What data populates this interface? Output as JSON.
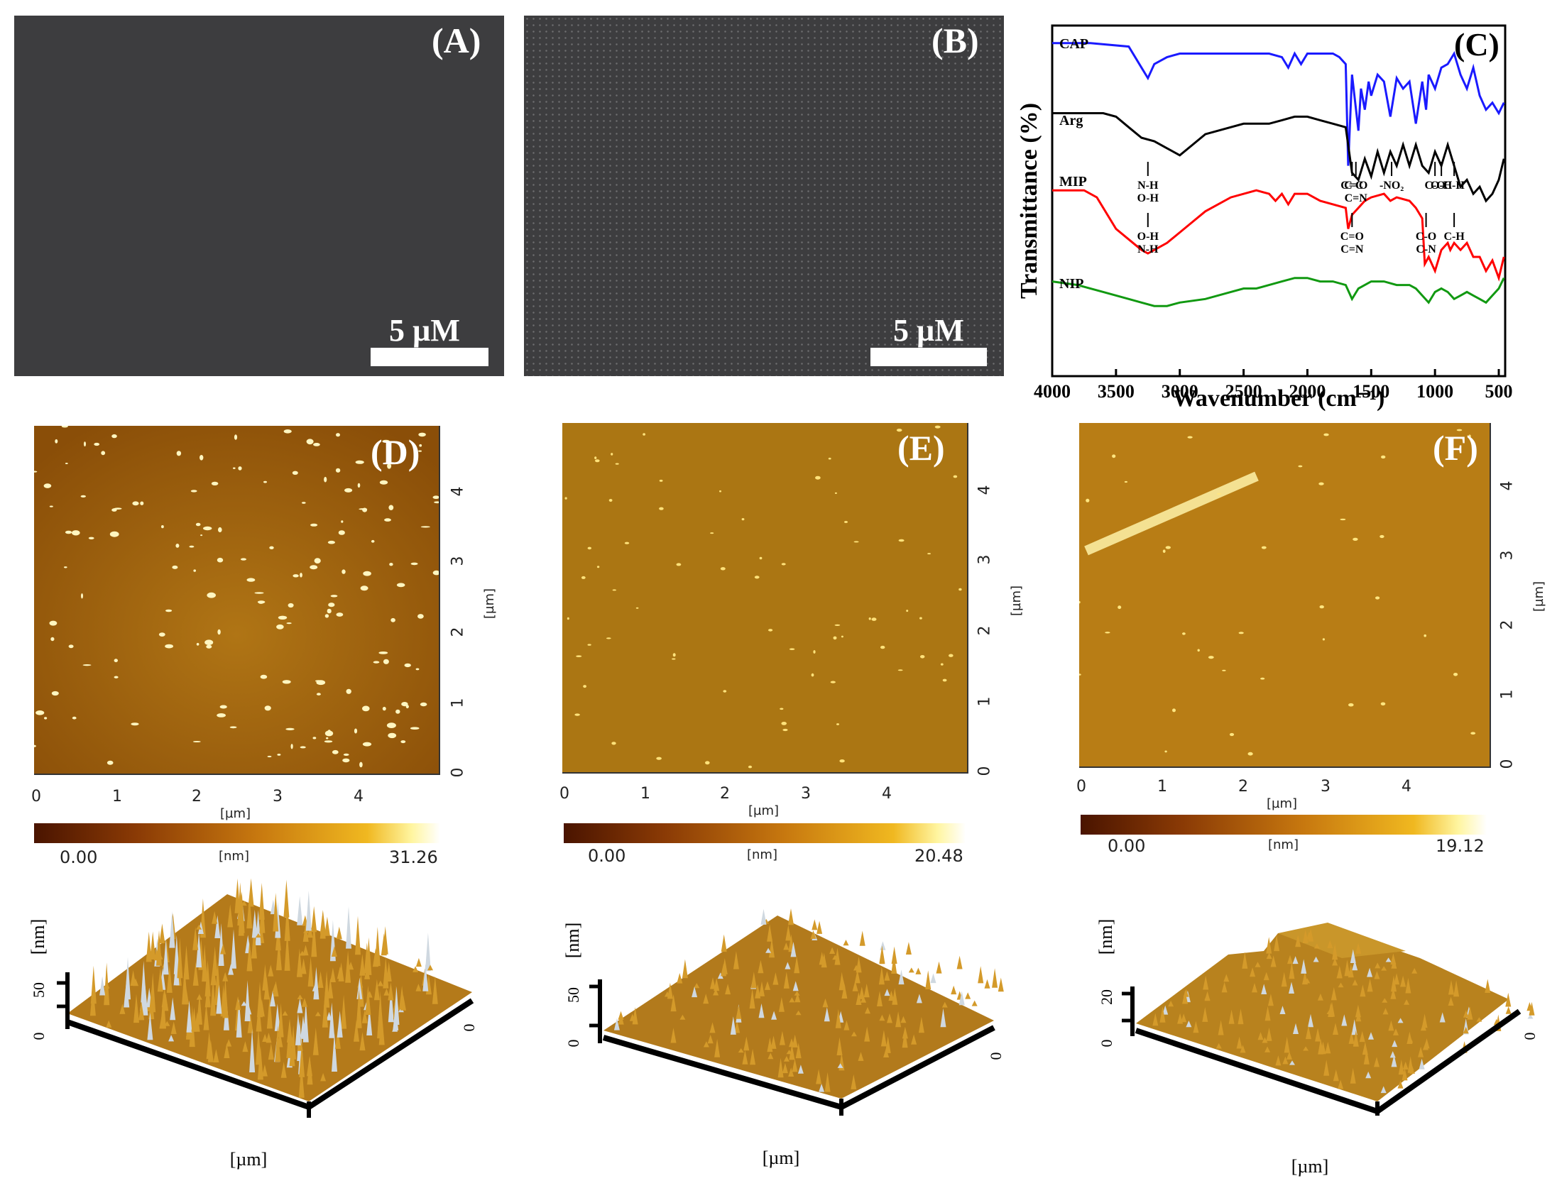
{
  "panels": {
    "A": {
      "label": "(A)",
      "scale": "5 µM"
    },
    "B": {
      "label": "(B)",
      "scale": "5 µM"
    },
    "D": {
      "label": "(D)",
      "x_ticks": [
        "0",
        "1",
        "2",
        "3",
        "4"
      ],
      "y_ticks": [
        "0",
        "1",
        "2",
        "3",
        "4"
      ],
      "x_unit": "[µm]",
      "y_unit": "[µm]",
      "cbar_min": "0.00",
      "cbar_unit": "[nm]",
      "cbar_max": "31.26",
      "z_unit": "[nm]",
      "z_ticks": [
        "0",
        "50"
      ],
      "zero_label": "0",
      "xy_unit": "[µm]"
    },
    "E": {
      "label": "(E)",
      "x_ticks": [
        "0",
        "1",
        "2",
        "3",
        "4"
      ],
      "y_ticks": [
        "0",
        "1",
        "2",
        "3",
        "4"
      ],
      "x_unit": "[µm]",
      "y_unit": "[µm]",
      "cbar_min": "0.00",
      "cbar_unit": "[nm]",
      "cbar_max": "20.48",
      "z_unit": "[nm]",
      "z_ticks": [
        "0",
        "50"
      ],
      "zero_label": "0",
      "xy_unit": "[µm]"
    },
    "F": {
      "label": "(F)",
      "x_ticks": [
        "0",
        "1",
        "2",
        "3",
        "4"
      ],
      "y_ticks": [
        "0",
        "1",
        "2",
        "3",
        "4"
      ],
      "x_unit": "[µm]",
      "y_unit": "[µm]",
      "cbar_min": "0.00",
      "cbar_unit": "[nm]",
      "cbar_max": "19.12",
      "z_unit": "[nm]",
      "z_ticks": [
        "0",
        "20"
      ],
      "zero_label": "0",
      "xy_unit": "[µm]"
    }
  },
  "chart_data": {
    "type": "line",
    "panel_label": "(C)",
    "xlabel": "Wavenumber (cm⁻¹)",
    "ylabel": "Transmittance (%)",
    "xlim": [
      4000,
      450
    ],
    "x_ticks": [
      "4000",
      "3500",
      "3000",
      "2500",
      "2000",
      "1500",
      "1000",
      "500"
    ],
    "series": [
      {
        "name": "CAP",
        "color": "#1a1aff",
        "x": [
          4000,
          3700,
          3400,
          3300,
          3250,
          3200,
          3100,
          3000,
          2800,
          2500,
          2300,
          2200,
          2150,
          2100,
          2050,
          2000,
          1900,
          1800,
          1750,
          1700,
          1680,
          1650,
          1600,
          1580,
          1550,
          1520,
          1500,
          1450,
          1400,
          1350,
          1300,
          1250,
          1200,
          1150,
          1100,
          1070,
          1050,
          1000,
          950,
          900,
          850,
          800,
          750,
          700,
          650,
          600,
          550,
          500,
          460
        ],
        "y": [
          95,
          95,
          94,
          88,
          85,
          89,
          91,
          92,
          92,
          92,
          92,
          91,
          88,
          92,
          89,
          92,
          92,
          92,
          91,
          89,
          60,
          86,
          70,
          82,
          76,
          84,
          80,
          86,
          84,
          74,
          85,
          82,
          84,
          72,
          84,
          76,
          86,
          82,
          88,
          89,
          92,
          86,
          82,
          88,
          80,
          76,
          78,
          75,
          78
        ]
      },
      {
        "name": "Arg",
        "color": "#000000",
        "x": [
          4000,
          3600,
          3500,
          3400,
          3300,
          3200,
          3100,
          3000,
          2900,
          2800,
          2500,
          2300,
          2200,
          2100,
          2000,
          1900,
          1800,
          1700,
          1650,
          1600,
          1550,
          1500,
          1450,
          1400,
          1350,
          1300,
          1250,
          1200,
          1150,
          1100,
          1050,
          1000,
          950,
          900,
          850,
          800,
          750,
          700,
          650,
          600,
          550,
          500,
          460
        ],
        "y": [
          75,
          75,
          74,
          71,
          68,
          67,
          65,
          63,
          66,
          69,
          72,
          72,
          73,
          74,
          74,
          73,
          72,
          71,
          58,
          56,
          62,
          57,
          64,
          58,
          64,
          60,
          66,
          60,
          66,
          60,
          58,
          64,
          60,
          66,
          60,
          54,
          56,
          52,
          54,
          50,
          52,
          56,
          62
        ]
      },
      {
        "name": "MIP",
        "color": "#ff0000",
        "x": [
          4000,
          3750,
          3650,
          3500,
          3400,
          3300,
          3250,
          3200,
          3100,
          3000,
          2900,
          2800,
          2600,
          2400,
          2300,
          2250,
          2200,
          2150,
          2100,
          2000,
          1900,
          1800,
          1700,
          1680,
          1650,
          1600,
          1550,
          1500,
          1400,
          1350,
          1300,
          1200,
          1150,
          1100,
          1080,
          1050,
          1000,
          950,
          900,
          880,
          850,
          800,
          750,
          700,
          650,
          600,
          550,
          500,
          460
        ],
        "y": [
          53,
          53,
          51,
          42,
          39,
          36,
          35,
          36,
          38,
          41,
          44,
          47,
          51,
          53,
          52,
          50,
          52,
          49,
          52,
          52,
          50,
          49,
          48,
          42,
          46,
          48,
          50,
          51,
          52,
          50,
          51,
          50,
          48,
          45,
          32,
          34,
          30,
          36,
          38,
          36,
          38,
          36,
          38,
          34,
          34,
          30,
          33,
          28,
          34
        ]
      },
      {
        "name": "NIP",
        "color": "#119911",
        "x": [
          4000,
          3800,
          3600,
          3400,
          3300,
          3200,
          3100,
          3000,
          2800,
          2600,
          2500,
          2400,
          2300,
          2200,
          2100,
          2000,
          1900,
          1800,
          1700,
          1650,
          1600,
          1550,
          1500,
          1400,
          1300,
          1200,
          1150,
          1100,
          1050,
          1000,
          950,
          900,
          850,
          800,
          750,
          700,
          650,
          600,
          550,
          500,
          460
        ],
        "y": [
          27,
          26,
          24,
          22,
          21,
          20,
          20,
          21,
          22,
          24,
          25,
          25,
          26,
          27,
          28,
          28,
          27,
          27,
          26,
          22,
          25,
          26,
          27,
          27,
          26,
          26,
          25,
          23,
          21,
          24,
          25,
          24,
          22,
          23,
          24,
          23,
          22,
          21,
          23,
          25,
          28
        ]
      }
    ],
    "series_labels": [
      "CAP",
      "Arg",
      "MIP",
      "NIP"
    ],
    "annotations": {
      "mip": [
        {
          "x": 3250,
          "lines": [
            "N-H",
            "O-H"
          ]
        },
        {
          "x": 1650,
          "lines": [
            "C=C"
          ]
        },
        {
          "x": 1620,
          "lines": [
            "C=O",
            "C=N"
          ]
        },
        {
          "x": 1340,
          "lines": [
            "-NO₂"
          ]
        },
        {
          "x": 1000,
          "lines": [
            "C-O"
          ]
        },
        {
          "x": 950,
          "lines": [
            "O-H"
          ]
        },
        {
          "x": 850,
          "lines": [
            "C-H"
          ]
        }
      ],
      "nip": [
        {
          "x": 3250,
          "lines": [
            "O-H",
            "N-H"
          ]
        },
        {
          "x": 1650,
          "lines": [
            "C=O",
            "C=N"
          ]
        },
        {
          "x": 1070,
          "lines": [
            "C-O",
            "C-N"
          ]
        },
        {
          "x": 850,
          "lines": [
            "C-H"
          ]
        }
      ]
    }
  }
}
